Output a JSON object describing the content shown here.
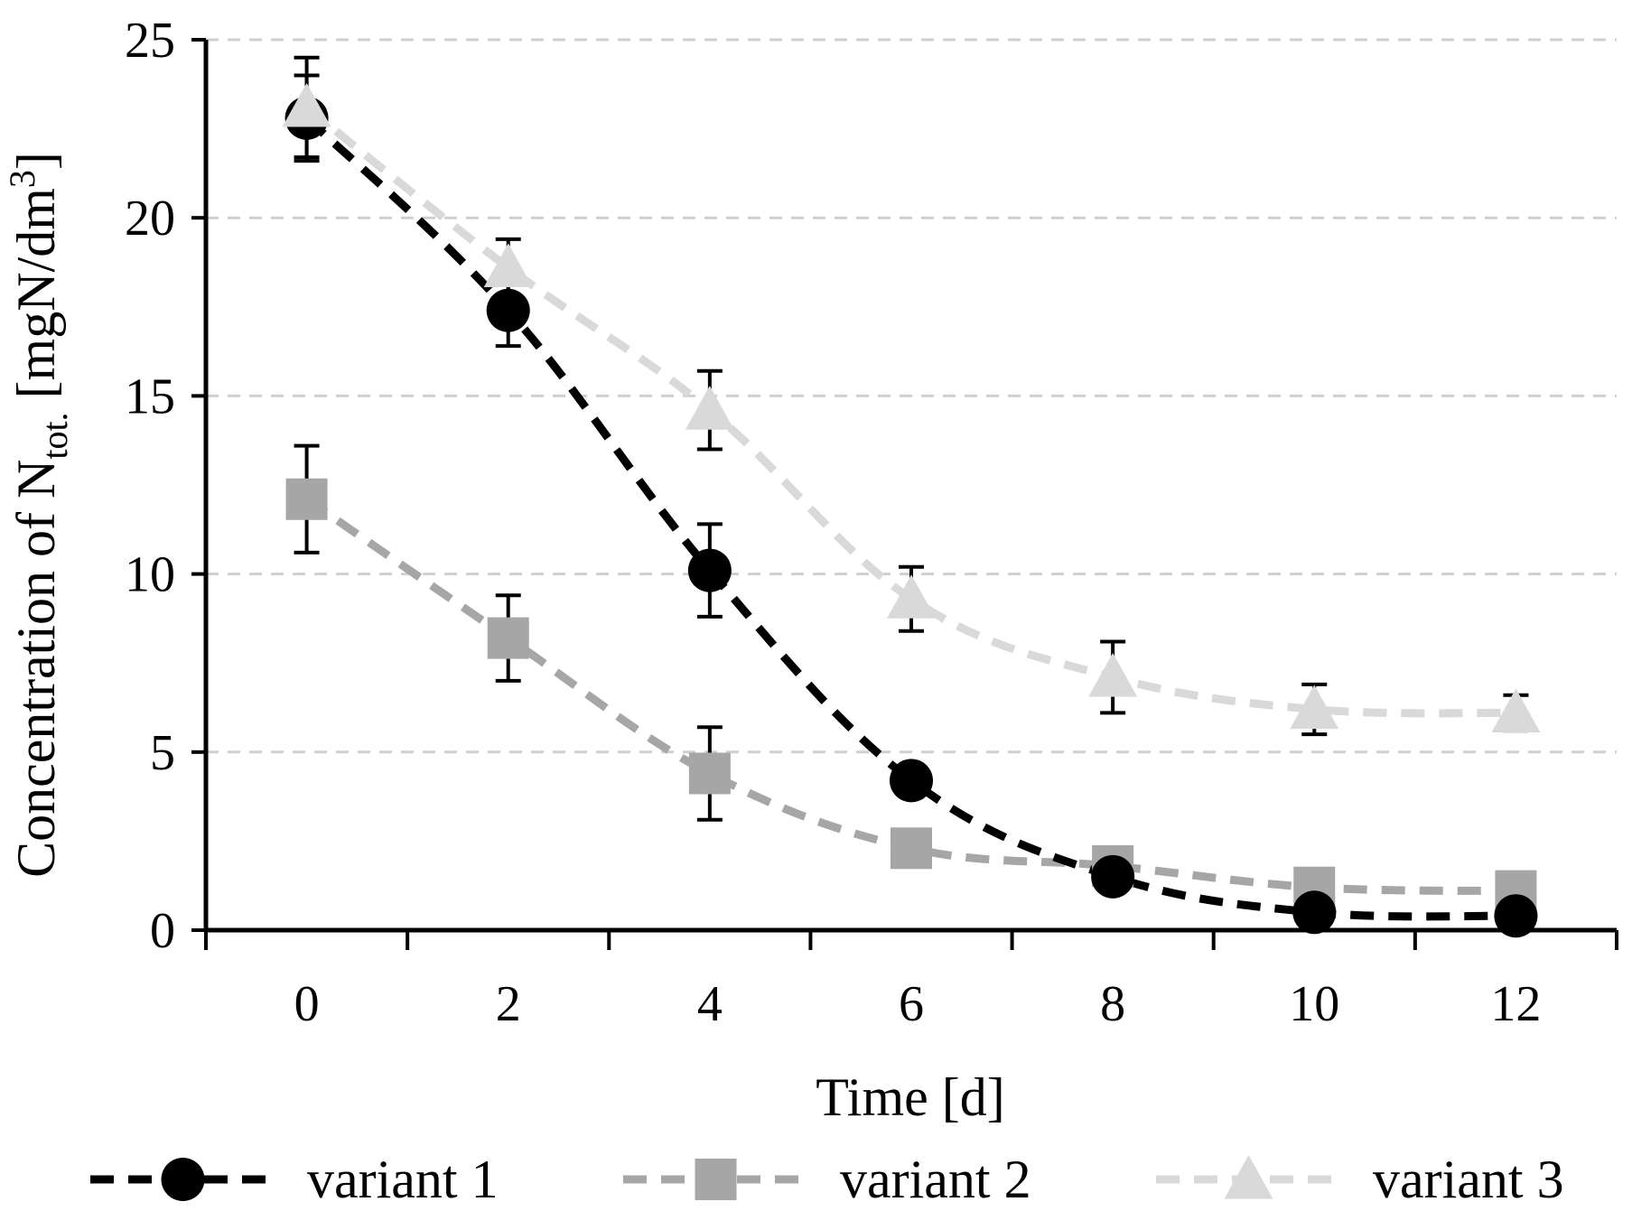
{
  "chart_data": {
    "type": "line",
    "title": "",
    "xlabel": "Time [d]",
    "ylabel": {
      "prefix": "Concentration of N",
      "subscript": "tot.",
      "unit_open": " [mgN/dm",
      "superscript": "3",
      "unit_close": "]"
    },
    "x": [
      0,
      2,
      4,
      6,
      8,
      10,
      12
    ],
    "x_tick_labels": [
      "0",
      "2",
      "4",
      "6",
      "8",
      "10",
      "12"
    ],
    "y_tick_labels": [
      "0",
      "5",
      "10",
      "15",
      "20",
      "25"
    ],
    "y_ticks": [
      0,
      5,
      10,
      15,
      20,
      25
    ],
    "ylim": [
      0,
      25
    ],
    "grid": "horizontal dashed",
    "legend_position": "bottom",
    "series": [
      {
        "name": "variant 1",
        "marker": "circle",
        "color": "#000000",
        "values": [
          22.8,
          17.4,
          10.1,
          4.2,
          1.5,
          0.5,
          0.4
        ],
        "error": [
          1.2,
          1.0,
          1.3,
          0,
          0,
          0,
          0
        ]
      },
      {
        "name": "variant 2",
        "marker": "square",
        "color": "#a6a6a6",
        "values": [
          12.1,
          8.2,
          4.4,
          2.3,
          1.8,
          1.2,
          1.1
        ],
        "error": [
          1.5,
          1.2,
          1.3,
          0,
          0,
          0,
          0
        ]
      },
      {
        "name": "variant 3",
        "marker": "triangle",
        "color": "#d9d9d9",
        "values": [
          23.1,
          18.6,
          14.6,
          9.3,
          7.1,
          6.2,
          6.1
        ],
        "error": [
          1.4,
          0.8,
          1.1,
          0.9,
          1.0,
          0.7,
          0.5
        ]
      }
    ],
    "errorbar_color": "#000000"
  }
}
